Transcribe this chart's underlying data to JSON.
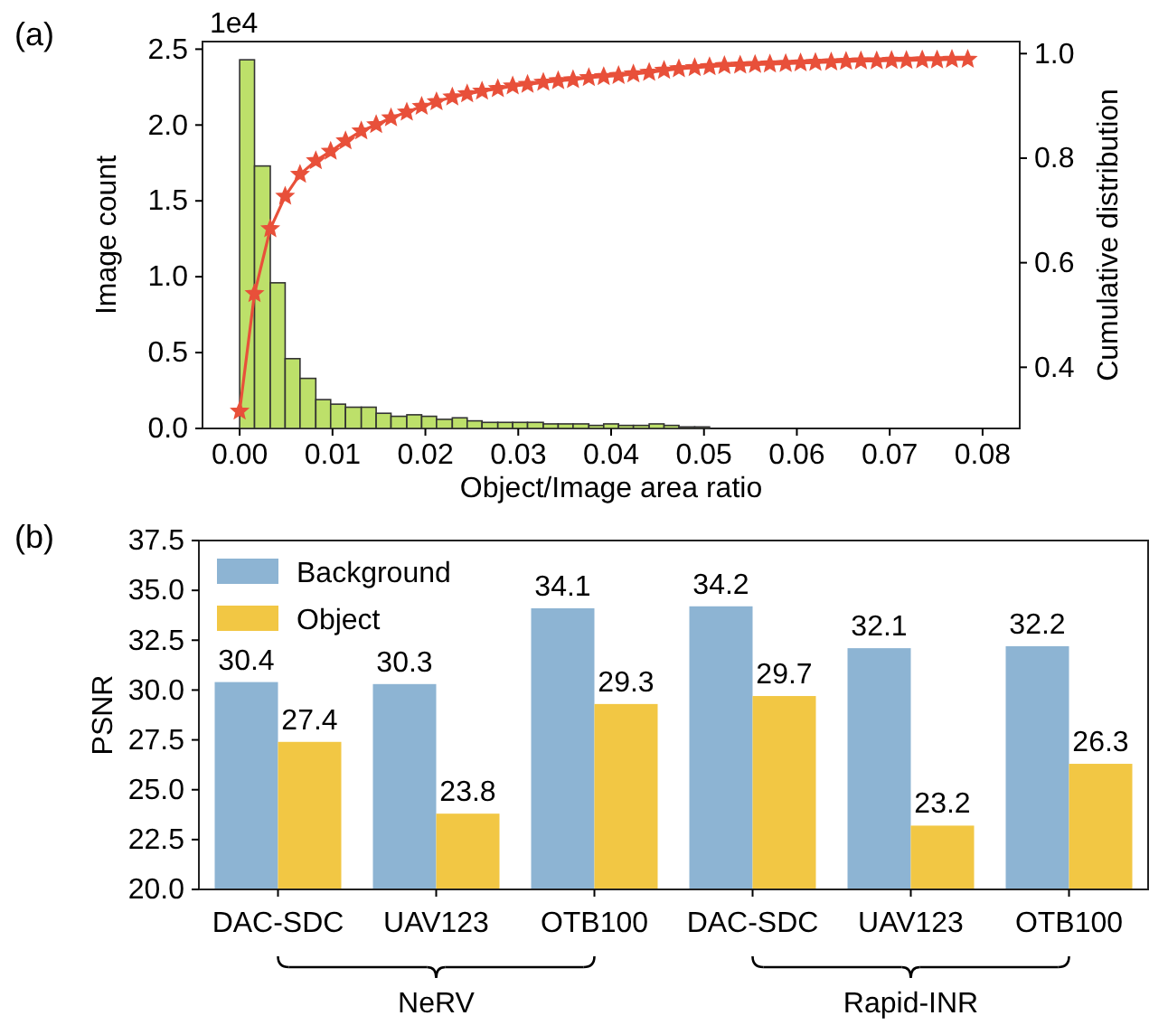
{
  "chart_data": [
    {
      "type": "histogram",
      "title": "(a)",
      "xlabel": "Object/Image area ratio",
      "ylabel": "Image count",
      "y2label": "Cumulative distribution",
      "annotations": [
        "1e4"
      ],
      "xlim": [
        -0.004,
        0.084
      ],
      "xticks": [
        {
          "value": 0,
          "label": "0.00"
        },
        {
          "value": 0.01,
          "label": "0.01"
        },
        {
          "value": 0.02,
          "label": "0.02"
        },
        {
          "value": 0.03,
          "label": "0.03"
        },
        {
          "value": 0.04,
          "label": "0.04"
        },
        {
          "value": 0.05,
          "label": "0.05"
        },
        {
          "value": 0.06,
          "label": "0.06"
        },
        {
          "value": 0.07,
          "label": "0.07"
        },
        {
          "value": 0.08,
          "label": "0.08"
        }
      ],
      "ylim": [
        0,
        2.55
      ],
      "yticks": [
        {
          "value": 0,
          "label": "0.0"
        },
        {
          "value": 0.5,
          "label": "0.5"
        },
        {
          "value": 1,
          "label": "1.0"
        },
        {
          "value": 1.5,
          "label": "1.5"
        },
        {
          "value": 2,
          "label": "2.0"
        },
        {
          "value": 2.5,
          "label": "2.5"
        }
      ],
      "y2lim": [
        0.283,
        1.023
      ],
      "y2ticks": [
        {
          "value": 0.4,
          "label": "0.4"
        },
        {
          "value": 0.6,
          "label": "0.6"
        },
        {
          "value": 0.8,
          "label": "0.8"
        },
        {
          "value": 1.0,
          "label": "1.0"
        }
      ],
      "grid": false,
      "series": [
        {
          "type": "histogram",
          "color": "#bde06a",
          "bins": [
            0,
            0.0016,
            0.0033,
            0.0049,
            0.0065,
            0.0082,
            0.0098,
            0.0114,
            0.0131,
            0.0147,
            0.0163,
            0.018,
            0.0196,
            0.0212,
            0.0229,
            0.0245,
            0.0261,
            0.0278,
            0.0294,
            0.031,
            0.0327,
            0.0343,
            0.0359,
            0.0376,
            0.0392,
            0.0408,
            0.0424,
            0.0441,
            0.0457,
            0.0473,
            0.049,
            0.0506
          ],
          "values": [
            2.43,
            1.73,
            0.96,
            0.46,
            0.33,
            0.19,
            0.16,
            0.14,
            0.14,
            0.1,
            0.08,
            0.09,
            0.08,
            0.06,
            0.07,
            0.05,
            0.04,
            0.04,
            0.04,
            0.04,
            0.03,
            0.03,
            0.03,
            0.02,
            0.03,
            0.02,
            0.02,
            0.03,
            0.02,
            0.01,
            0.01
          ]
        },
        {
          "type": "line",
          "axis": "y2",
          "color": "#e8503a",
          "marker": "star",
          "line_style": "solid",
          "x": [
            0,
            0.0016,
            0.0033,
            0.0049,
            0.0065,
            0.0082,
            0.0098,
            0.0114,
            0.0131,
            0.0147,
            0.0163,
            0.018,
            0.0196,
            0.0212,
            0.0229,
            0.0245,
            0.0261,
            0.0278,
            0.0294,
            0.031,
            0.0327,
            0.0343,
            0.0359,
            0.0376,
            0.0392,
            0.0408,
            0.0424,
            0.0441,
            0.0457,
            0.0473,
            0.049,
            0.0506,
            0.0522,
            0.0539,
            0.0555,
            0.0571,
            0.0588,
            0.0604,
            0.062,
            0.0637,
            0.0653,
            0.0669,
            0.0686,
            0.0702,
            0.0718,
            0.0735,
            0.0751,
            0.0767,
            0.0784
          ],
          "values": [
            0.316,
            0.541,
            0.665,
            0.727,
            0.769,
            0.795,
            0.813,
            0.833,
            0.852,
            0.864,
            0.877,
            0.888,
            0.899,
            0.908,
            0.917,
            0.923,
            0.928,
            0.933,
            0.938,
            0.941,
            0.945,
            0.948,
            0.95,
            0.954,
            0.956,
            0.958,
            0.961,
            0.964,
            0.968,
            0.971,
            0.973,
            0.975,
            0.977,
            0.978,
            0.979,
            0.98,
            0.981,
            0.982,
            0.983,
            0.984,
            0.985,
            0.986,
            0.986,
            0.987,
            0.987,
            0.988,
            0.988,
            0.989,
            0.989
          ]
        }
      ]
    },
    {
      "type": "bar",
      "title": "(b)",
      "ylabel": "PSNR",
      "categories": [
        "DAC-SDC",
        "UAV123",
        "OTB100",
        "DAC-SDC",
        "UAV123",
        "OTB100"
      ],
      "annotations": [
        "NeRV",
        "Rapid-INR"
      ],
      "ylim": [
        20,
        37.5
      ],
      "yticks": [
        {
          "value": 20,
          "label": "20.0"
        },
        {
          "value": 22.5,
          "label": "22.5"
        },
        {
          "value": 25,
          "label": "25.0"
        },
        {
          "value": 27.5,
          "label": "27.5"
        },
        {
          "value": 30,
          "label": "30.0"
        },
        {
          "value": 32.5,
          "label": "32.5"
        },
        {
          "value": 35,
          "label": "35.0"
        },
        {
          "value": 37.5,
          "label": "37.5"
        }
      ],
      "grid": false,
      "legend": "top left",
      "data_labels": true,
      "series": [
        {
          "name": "Background",
          "color": "#8db4d3",
          "values": [
            30.4,
            30.3,
            34.1,
            34.2,
            32.1,
            32.2
          ]
        },
        {
          "name": "Object",
          "color": "#f2c744",
          "values": [
            27.4,
            23.8,
            29.3,
            29.7,
            23.2,
            26.3
          ]
        }
      ]
    }
  ]
}
